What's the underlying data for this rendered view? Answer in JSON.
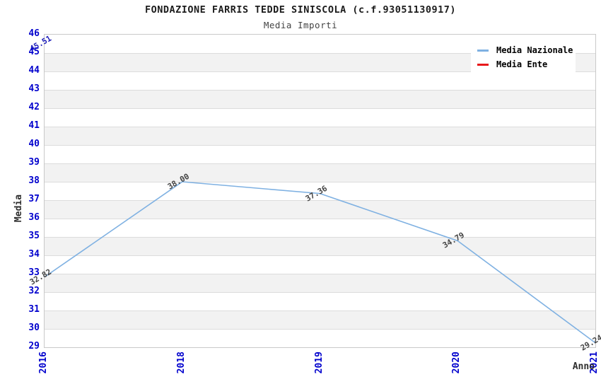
{
  "chart_data": {
    "type": "line",
    "title": "FONDAZIONE FARRIS TEDDE SINISCOLA (c.f.93051130917)",
    "subtitle": "Media Importi",
    "xlabel": "Anno",
    "ylabel": "Media",
    "categories": [
      "2016",
      "2018",
      "2019",
      "2020",
      "2021"
    ],
    "ylim": [
      29,
      46
    ],
    "ytick_step": 1,
    "grid": "horizontal-bands-alternating",
    "legend_position": "top-right",
    "tick_color": "#0000cd",
    "band_color": "#f2f2f2",
    "gridline_color": "#dcdcdc",
    "series": [
      {
        "name": "Media Nazionale",
        "color": "#7fb1e2",
        "values": [
          32.82,
          38.0,
          37.36,
          34.79,
          29.24
        ],
        "labels": [
          "32.82",
          "38.00",
          "37.36",
          "34.79",
          "29.24"
        ],
        "label_color": "#454545"
      },
      {
        "name": "Media Ente",
        "color": "#e8191b",
        "values": [
          45.51,
          null,
          null,
          null,
          null
        ],
        "labels": [
          "45.51",
          "",
          "",
          "",
          ""
        ],
        "label_color": "#2222bb"
      }
    ]
  }
}
